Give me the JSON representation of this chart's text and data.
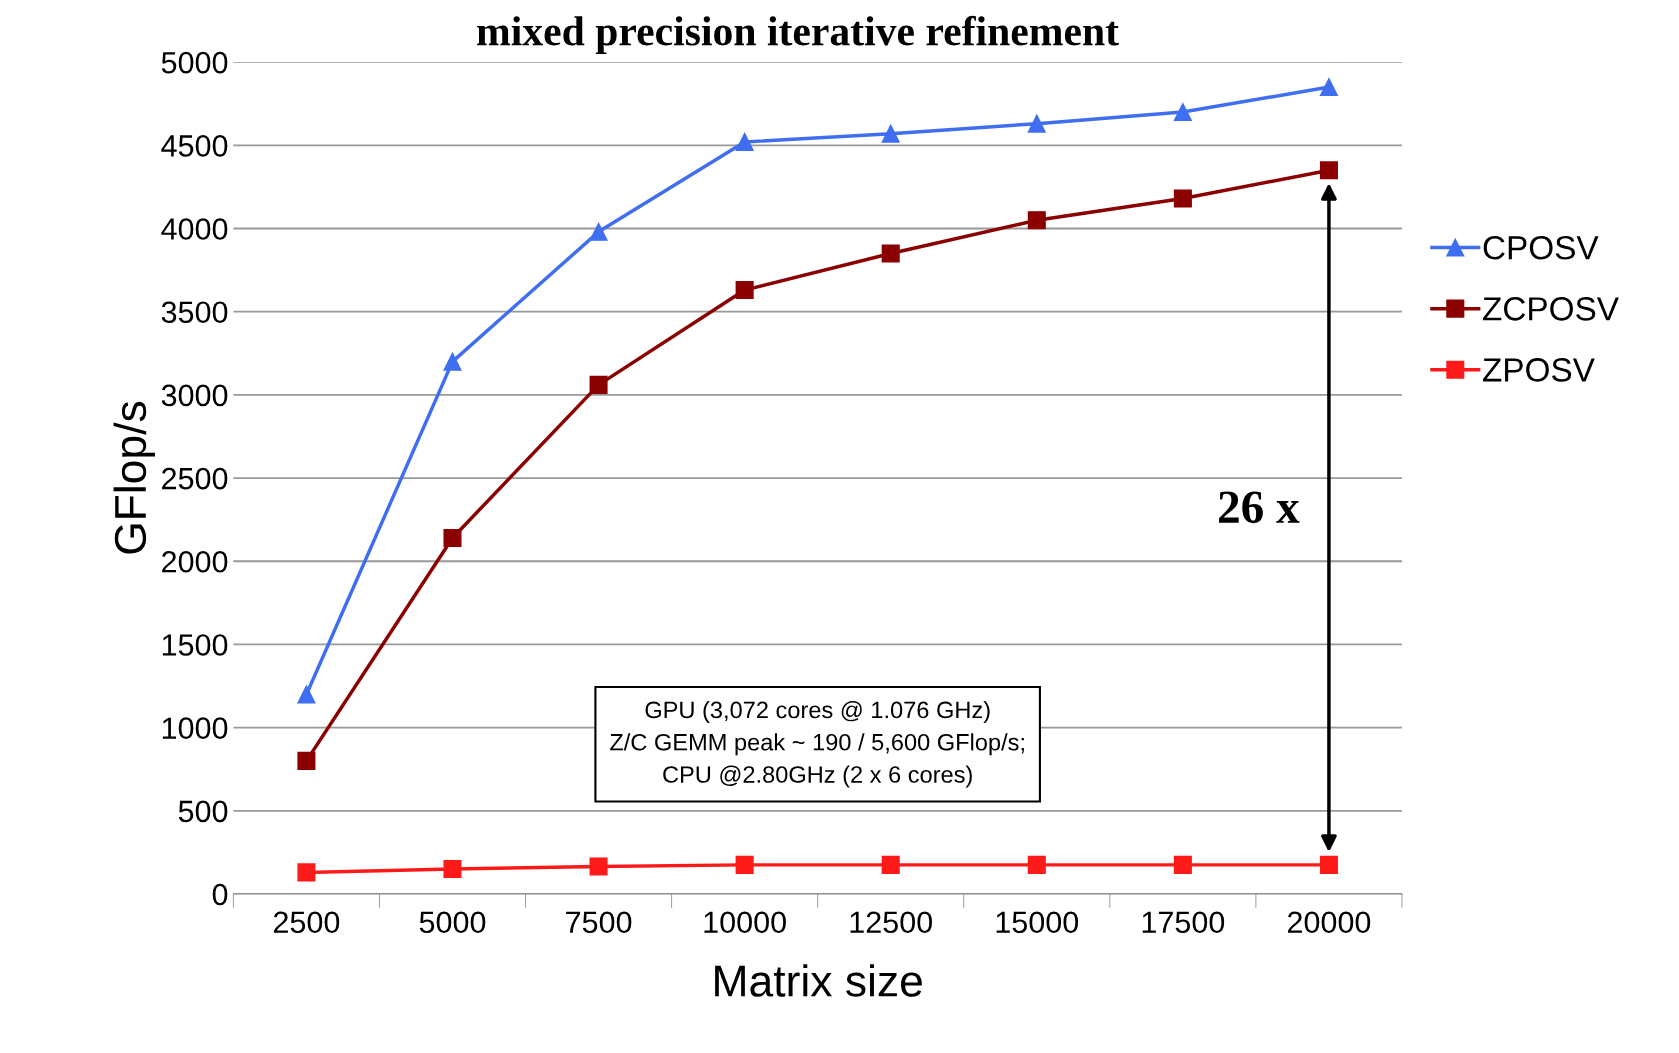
{
  "chart_data": {
    "type": "line",
    "title": "mixed precision iterative refinement",
    "xlabel": "Matrix size",
    "ylabel": "GFlop/s",
    "categories": [
      "2500",
      "5000",
      "7500",
      "10000",
      "12500",
      "15000",
      "17500",
      "20000"
    ],
    "series": [
      {
        "name": "CPOSV",
        "color": "#3f6ef0",
        "marker": "triangle",
        "values": [
          1200,
          3200,
          3980,
          4520,
          4570,
          4630,
          4700,
          4850
        ]
      },
      {
        "name": "ZCPOSV",
        "color": "#8b0000",
        "marker": "square",
        "values": [
          800,
          2140,
          3060,
          3630,
          3850,
          4050,
          4180,
          4350
        ]
      },
      {
        "name": "ZPOSV",
        "color": "#ff1a1a",
        "marker": "square",
        "values": [
          130,
          150,
          165,
          175,
          175,
          175,
          175,
          175
        ]
      }
    ],
    "ylim": [
      0,
      5000
    ],
    "yticks": [
      0,
      500,
      1000,
      1500,
      2000,
      2500,
      3000,
      3500,
      4000,
      4500,
      5000
    ],
    "grid": "y",
    "legend": "right",
    "annotations": [
      "26 x",
      "GPU (3,072 cores @ 1.076 GHz)\nZ/C GEMM peak ~ 190 / 5,600 GFlop/s;\nCPU @2.80GHz (2 x 6 cores)"
    ]
  }
}
